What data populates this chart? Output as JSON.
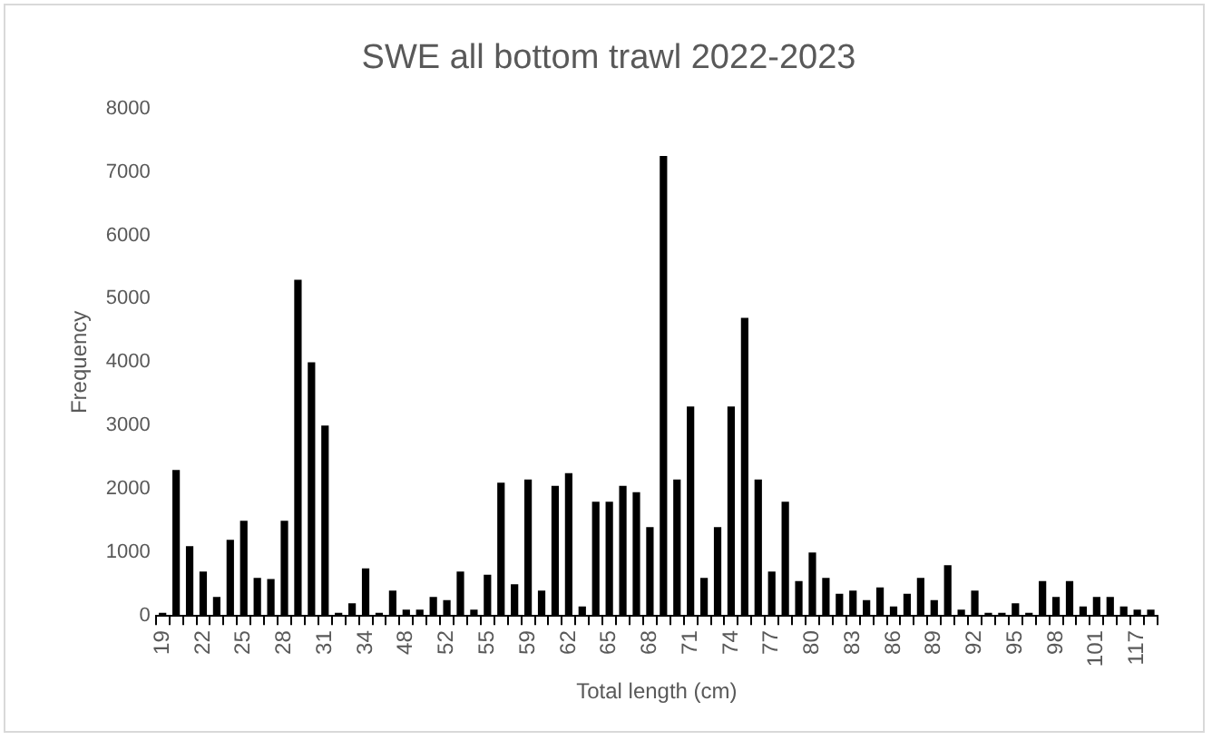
{
  "chart_data": {
    "type": "bar",
    "title": "SWE all bottom trawl 2022-2023",
    "xlabel": "Total length (cm)",
    "ylabel": "Frequency",
    "categories": [
      "19",
      null,
      null,
      "22",
      null,
      null,
      "25",
      null,
      null,
      "28",
      null,
      null,
      "31",
      null,
      null,
      "34",
      null,
      null,
      "48",
      null,
      null,
      "52",
      null,
      null,
      "55",
      null,
      null,
      "59",
      null,
      null,
      "62",
      null,
      null,
      "65",
      null,
      null,
      "68",
      null,
      null,
      "71",
      null,
      null,
      "74",
      null,
      null,
      "77",
      null,
      null,
      "80",
      null,
      null,
      "83",
      null,
      null,
      "86",
      null,
      null,
      "89",
      null,
      null,
      "92",
      null,
      null,
      "95",
      null,
      null,
      "98",
      null,
      null,
      "101",
      null,
      null,
      "117",
      null
    ],
    "values": [
      50,
      2300,
      1100,
      700,
      300,
      1200,
      1500,
      600,
      580,
      1500,
      5300,
      4000,
      3000,
      50,
      200,
      750,
      50,
      400,
      100,
      100,
      300,
      250,
      700,
      100,
      650,
      2100,
      500,
      2150,
      400,
      2050,
      2250,
      150,
      1800,
      1800,
      2050,
      1950,
      1400,
      7250,
      2150,
      3300,
      600,
      1400,
      3300,
      4700,
      2150,
      700,
      1800,
      550,
      1000,
      600,
      350,
      400,
      250,
      450,
      150,
      350,
      600,
      250,
      800,
      100,
      400,
      50,
      50,
      200,
      50,
      550,
      300,
      550,
      150,
      300,
      300,
      150,
      100,
      100
    ],
    "color": "#000000",
    "ylim": [
      0,
      8000
    ],
    "yticks": [
      0,
      1000,
      2000,
      3000,
      4000,
      5000,
      6000,
      7000,
      8000
    ],
    "grid": false,
    "legend": false
  }
}
